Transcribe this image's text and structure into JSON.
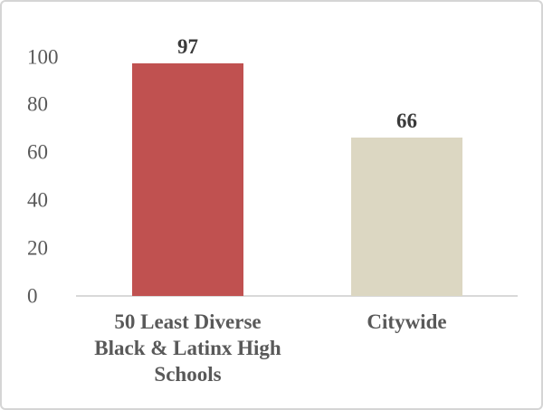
{
  "chart_data": {
    "type": "bar",
    "title": "",
    "xlabel": "",
    "ylabel": "",
    "categories": [
      "50 Least Diverse Black & Latinx High Schools",
      "Citywide"
    ],
    "values": [
      97,
      66
    ],
    "ylim": [
      0,
      100
    ],
    "yticks": [
      0,
      20,
      40,
      60,
      80,
      100
    ],
    "grid": false,
    "legend": "none",
    "axis_line_color": "#d9d9d9",
    "points": [
      {
        "category_lines": "50 Least Diverse\nBlack & Latinx High\nSchools",
        "value": 97,
        "data_label": "97",
        "color": "#C05150"
      },
      {
        "category_lines": "Citywide",
        "value": 66,
        "data_label": "66",
        "color": "#DCD7C2"
      }
    ]
  }
}
